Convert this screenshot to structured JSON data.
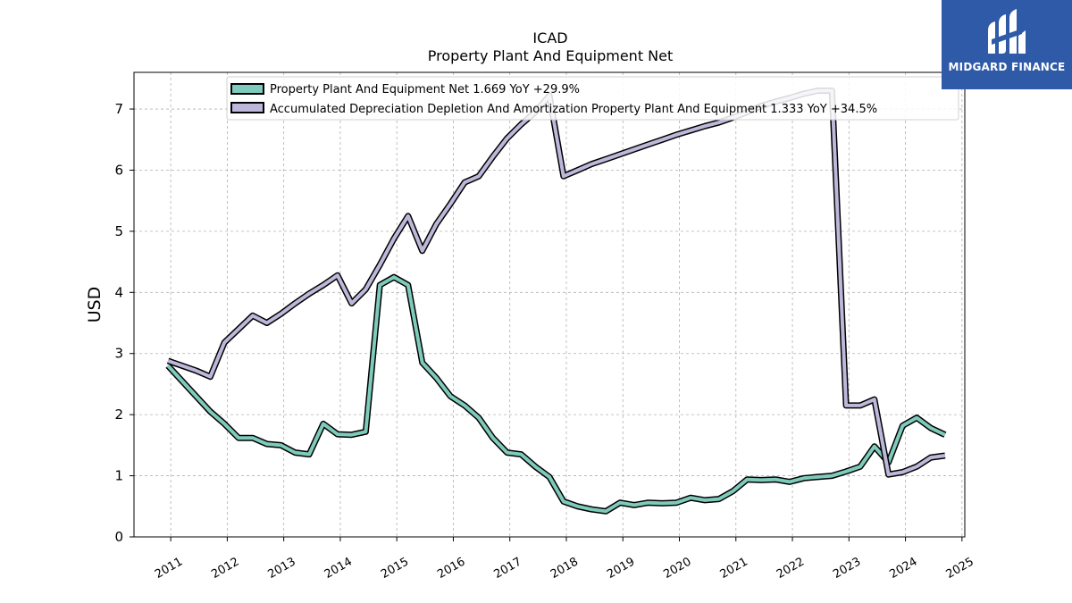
{
  "brand": {
    "name": "MIDGARD FINANCE",
    "bg_color": "#2f5aa8"
  },
  "chart_data": {
    "type": "line",
    "title": "ICAD",
    "subtitle": "Property Plant And Equipment Net",
    "xlabel": "",
    "ylabel": "USD",
    "xlim": [
      2010.35,
      2025.05
    ],
    "ylim": [
      0,
      7.6
    ],
    "x_ticks": [
      "2011",
      "2012",
      "2013",
      "2014",
      "2015",
      "2016",
      "2017",
      "2018",
      "2019",
      "2020",
      "2021",
      "2022",
      "2023",
      "2024",
      "2025"
    ],
    "y_ticks": [
      "0",
      "1",
      "2",
      "3",
      "4",
      "5",
      "6",
      "7"
    ],
    "grid": true,
    "legend_position": "top-center",
    "series": [
      {
        "name": "Property Plant And Equipment Net",
        "legend_label": "Property Plant And Equipment Net  1.669 YoY +29.9%",
        "color": "#7ecbbb",
        "x": [
          2010.95,
          2011.2,
          2011.45,
          2011.7,
          2011.95,
          2012.2,
          2012.45,
          2012.7,
          2012.95,
          2013.2,
          2013.45,
          2013.7,
          2013.95,
          2014.2,
          2014.45,
          2014.7,
          2014.95,
          2015.2,
          2015.45,
          2015.7,
          2015.95,
          2016.2,
          2016.45,
          2016.7,
          2016.95,
          2017.2,
          2017.45,
          2017.7,
          2017.95,
          2018.2,
          2018.45,
          2018.7,
          2018.95,
          2019.2,
          2019.45,
          2019.7,
          2019.95,
          2020.2,
          2020.45,
          2020.7,
          2020.95,
          2021.2,
          2021.45,
          2021.7,
          2021.95,
          2022.2,
          2022.45,
          2022.7,
          2022.95,
          2023.2,
          2023.45,
          2023.7,
          2023.95,
          2024.2,
          2024.45,
          2024.7
        ],
        "values": [
          2.8,
          2.55,
          2.3,
          2.05,
          1.85,
          1.62,
          1.62,
          1.52,
          1.5,
          1.38,
          1.35,
          1.85,
          1.68,
          1.67,
          1.72,
          4.12,
          4.25,
          4.12,
          2.85,
          2.6,
          2.3,
          2.15,
          1.95,
          1.62,
          1.38,
          1.35,
          1.15,
          0.98,
          0.58,
          0.5,
          0.45,
          0.42,
          0.56,
          0.52,
          0.56,
          0.55,
          0.56,
          0.64,
          0.6,
          0.62,
          0.75,
          0.94,
          0.93,
          0.94,
          0.9,
          0.96,
          0.98,
          1.0,
          1.07,
          1.15,
          1.48,
          1.22,
          1.82,
          1.95,
          1.78,
          1.67
        ]
      },
      {
        "name": "Accumulated Depreciation Depletion And Amortization Property Plant And Equipment",
        "legend_label": "Accumulated Depreciation Depletion And Amortization Property Plant And Equipment  1.333 YoY +34.5%",
        "color": "#bdb8da",
        "x": [
          2010.95,
          2011.2,
          2011.45,
          2011.7,
          2011.95,
          2012.2,
          2012.45,
          2012.7,
          2012.95,
          2013.2,
          2013.45,
          2013.7,
          2013.95,
          2014.2,
          2014.45,
          2014.7,
          2014.95,
          2015.2,
          2015.45,
          2015.7,
          2015.95,
          2016.2,
          2016.45,
          2016.7,
          2016.95,
          2017.2,
          2017.45,
          2017.7,
          2017.95,
          2018.2,
          2018.45,
          2018.7,
          2018.95,
          2019.2,
          2019.45,
          2019.7,
          2019.95,
          2020.2,
          2020.45,
          2020.7,
          2020.95,
          2021.2,
          2021.45,
          2021.7,
          2021.95,
          2022.2,
          2022.45,
          2022.7,
          2022.95,
          2023.2,
          2023.45,
          2023.7,
          2023.95,
          2024.2,
          2024.45,
          2024.7
        ],
        "values": [
          2.88,
          2.8,
          2.72,
          2.62,
          3.18,
          3.4,
          3.62,
          3.5,
          3.65,
          3.82,
          3.98,
          4.12,
          4.28,
          3.82,
          4.05,
          4.45,
          4.88,
          5.25,
          4.68,
          5.12,
          5.45,
          5.8,
          5.9,
          6.22,
          6.52,
          6.75,
          6.95,
          7.22,
          5.9,
          6.0,
          6.1,
          6.18,
          6.26,
          6.34,
          6.42,
          6.5,
          6.58,
          6.65,
          6.72,
          6.78,
          6.86,
          6.95,
          7.05,
          7.12,
          7.18,
          7.25,
          7.3,
          7.3,
          2.15,
          2.15,
          2.25,
          1.02,
          1.06,
          1.15,
          1.3,
          1.33
        ]
      }
    ]
  }
}
